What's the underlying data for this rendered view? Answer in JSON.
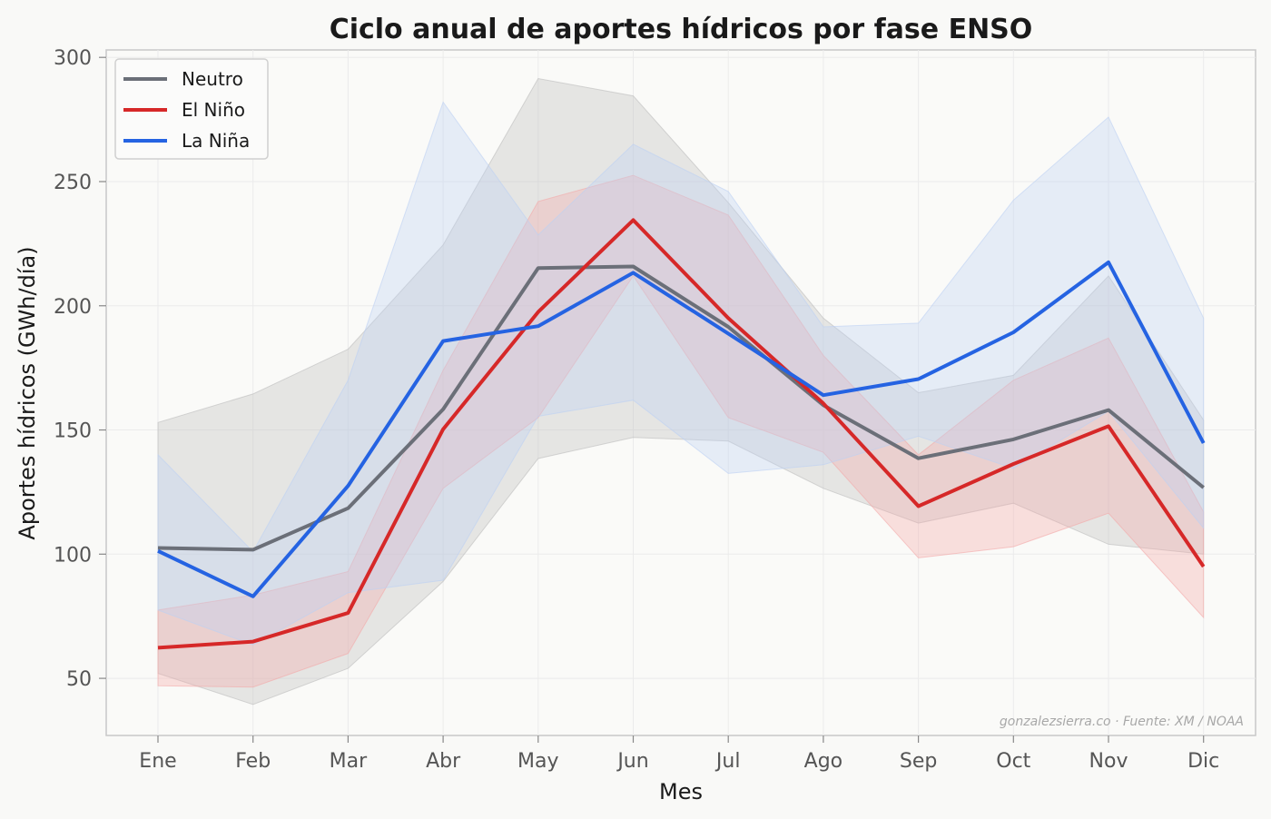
{
  "chart_data": {
    "type": "line",
    "title": "Ciclo anual de aportes hídricos por fase ENSO",
    "xlabel": "Mes",
    "ylabel": "Aportes hídricos (GWh/día)",
    "categories": [
      "Ene",
      "Feb",
      "Mar",
      "Abr",
      "May",
      "Jun",
      "Jul",
      "Ago",
      "Sep",
      "Oct",
      "Nov",
      "Dic"
    ],
    "ylim": [
      27,
      303
    ],
    "yticks": [
      50,
      100,
      150,
      200,
      250,
      300
    ],
    "grid": true,
    "legend_position": "top-left",
    "series": [
      {
        "name": "Neutro",
        "color": "#6b6f78",
        "band_color": "#bdbdbd",
        "values": [
          102.5,
          101.8,
          118.5,
          158.3,
          215.2,
          215.8,
          191.5,
          160,
          138.6,
          146.2,
          158,
          126.8
        ],
        "band_low": [
          52,
          39.5,
          54,
          89,
          138.5,
          147,
          145.5,
          126.5,
          112.5,
          120.5,
          104,
          100
        ],
        "band_high": [
          153,
          164.5,
          182.5,
          224.5,
          291.5,
          284.5,
          241.5,
          195,
          165,
          172,
          212,
          154
        ]
      },
      {
        "name": "El Niño",
        "color": "#d62828",
        "band_color": "#f4a8a8",
        "values": [
          62.3,
          64.8,
          76.3,
          150.3,
          197.5,
          234.5,
          195,
          160.7,
          119.3,
          136.3,
          151.5,
          95
        ],
        "band_low": [
          47,
          46.5,
          60,
          126.5,
          155,
          212,
          155,
          141,
          98.5,
          103,
          116.5,
          74.5
        ],
        "band_high": [
          77.5,
          83.5,
          93,
          174,
          242,
          252.5,
          236.5,
          180,
          140,
          170,
          187,
          117
        ]
      },
      {
        "name": "La Niña",
        "color": "#2563e2",
        "band_color": "#bcd0f4",
        "values": [
          101.3,
          83,
          127.5,
          185.8,
          191.8,
          213.3,
          188.8,
          164,
          170.5,
          189.3,
          217.5,
          144.7
        ],
        "band_low": [
          77.5,
          63.5,
          84.5,
          89.5,
          155.5,
          162,
          132.5,
          136,
          147.5,
          134.5,
          157.5,
          110.5
        ],
        "band_high": [
          140,
          101,
          170,
          282,
          228.5,
          265,
          246,
          191.5,
          193,
          242.5,
          276,
          195
        ]
      }
    ],
    "annotation": "gonzalezsierra.co · Fuente: XM / NOAA"
  }
}
